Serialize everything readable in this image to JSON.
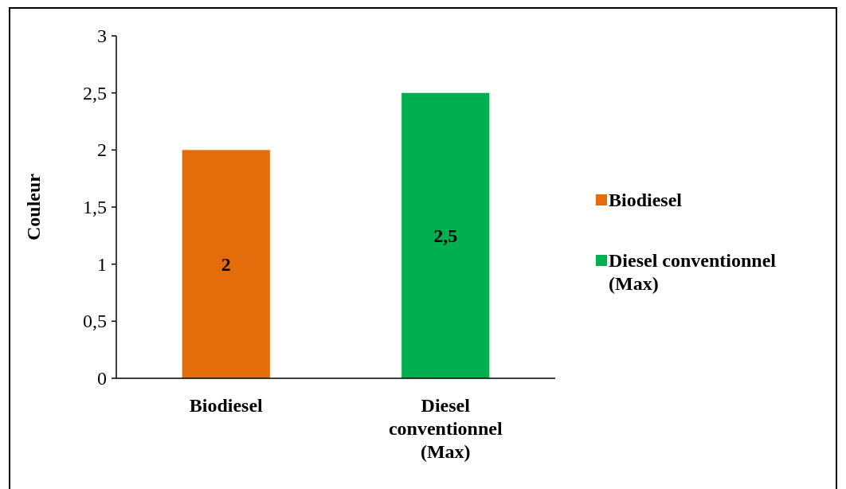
{
  "chart_data": {
    "type": "bar",
    "ylabel": "Couleur",
    "categories": [
      "Biodiesel",
      "Diesel conventionnel (Max)"
    ],
    "series": [
      {
        "name": "Biodiesel",
        "color": "#e46c0a",
        "values": [
          2,
          null
        ],
        "value_labels": [
          "2",
          null
        ]
      },
      {
        "name": "Diesel conventionnel (Max)",
        "color": "#00b050",
        "values": [
          null,
          2.5
        ],
        "value_labels": [
          null,
          "2,5"
        ]
      }
    ],
    "ylim": [
      0,
      3
    ],
    "yticks": [
      0,
      {
        "value": 0.5,
        "label": "0,5"
      },
      1,
      {
        "value": 1.5,
        "label": "1,5"
      },
      2,
      {
        "value": 2.5,
        "label": "2,5"
      },
      3
    ],
    "legend": "right"
  }
}
